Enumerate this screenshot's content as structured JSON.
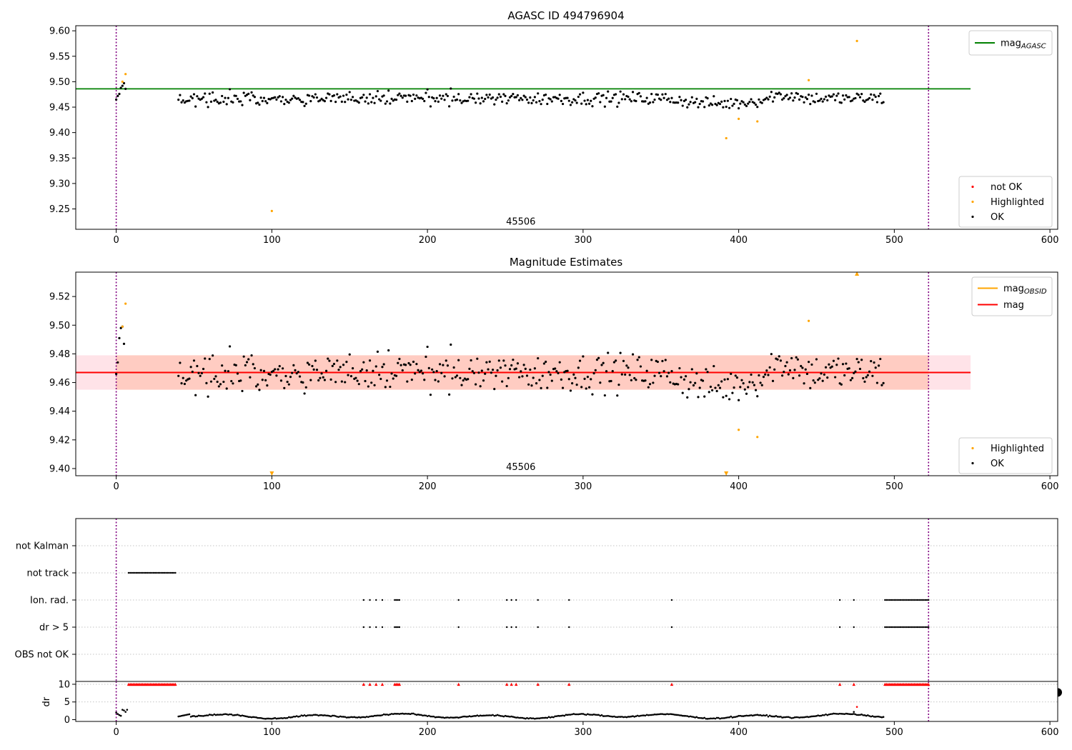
{
  "figure": {
    "panel1_title": "AGASC ID 494796904",
    "panel2_title": "Magnitude Estimates",
    "obsid_label": "45506"
  },
  "chart_data": [
    {
      "type": "scatter",
      "title": "AGASC ID 494796904",
      "xlabel": "",
      "ylabel": "",
      "xlim": [
        -26,
        605
      ],
      "ylim": [
        9.21,
        9.61
      ],
      "xticks": [
        0,
        100,
        200,
        300,
        400,
        500,
        600
      ],
      "yticks": [
        9.25,
        9.3,
        9.35,
        9.4,
        9.45,
        9.5,
        9.55,
        9.6
      ],
      "ytick_labels": [
        "9.25",
        "9.30",
        "9.35",
        "9.40",
        "9.45",
        "9.50",
        "9.55",
        "9.60"
      ],
      "vlines": [
        0,
        522
      ],
      "vline_color": "#800080",
      "hline": {
        "y": 9.486,
        "x_range": [
          -26,
          549
        ],
        "color": "#008000",
        "label": "mag",
        "label_sub": "AGASC"
      },
      "annotation": {
        "text": "45506",
        "x": 260,
        "y": 9.225
      },
      "legend_top_right": [
        {
          "label": "mag",
          "sub": "AGASC",
          "color": "#008000",
          "marker": "line"
        }
      ],
      "legend_bottom_right": [
        {
          "label": "not OK",
          "color": "#ff0000",
          "marker": "dot"
        },
        {
          "label": "Highlighted",
          "color": "#ffa500",
          "marker": "dot"
        },
        {
          "label": "OK",
          "color": "#000000",
          "marker": "dot"
        }
      ],
      "series": [
        {
          "name": "OK",
          "color": "#000000",
          "generated_range": [
            40,
            493
          ],
          "center": 9.467,
          "spread": 0.013,
          "points": [
            [
              0,
              9.465
            ],
            [
              1,
              9.472
            ],
            [
              2,
              9.476
            ],
            [
              3,
              9.488
            ],
            [
              4,
              9.492
            ],
            [
              5,
              9.497
            ],
            [
              6,
              9.486
            ]
          ]
        },
        {
          "name": "Highlighted",
          "color": "#ffa500",
          "points": [
            [
              4,
              9.5
            ],
            [
              6,
              9.515
            ],
            [
              100,
              9.246
            ],
            [
              392,
              9.389
            ],
            [
              400,
              9.427
            ],
            [
              412,
              9.422
            ],
            [
              445,
              9.503
            ],
            [
              476,
              9.58
            ]
          ]
        }
      ]
    },
    {
      "type": "scatter",
      "title": "Magnitude Estimates",
      "xlabel": "",
      "ylabel": "",
      "xlim": [
        -26,
        605
      ],
      "ylim": [
        9.395,
        9.537
      ],
      "xticks": [
        0,
        100,
        200,
        300,
        400,
        500,
        600
      ],
      "yticks": [
        9.4,
        9.42,
        9.44,
        9.46,
        9.48,
        9.5,
        9.52
      ],
      "ytick_labels": [
        "9.40",
        "9.42",
        "9.44",
        "9.46",
        "9.48",
        "9.50",
        "9.52"
      ],
      "vlines": [
        0,
        522
      ],
      "vline_color": "#800080",
      "mag_line": {
        "y": 9.467,
        "x_range": [
          -26,
          549
        ],
        "color": "#ff0000",
        "label": "mag"
      },
      "mag_obsid_line": {
        "y": 9.467,
        "x_range": [
          0,
          522
        ],
        "color": "#ffa500",
        "label": "mag",
        "label_sub": "OBSID"
      },
      "band_pink": {
        "y0": 9.455,
        "y1": 9.479,
        "x_range": [
          -26,
          549
        ],
        "color": "#ffc0cb"
      },
      "band_orange": {
        "y0": 9.455,
        "y1": 9.479,
        "x_range": [
          0,
          522
        ],
        "color": "#ffa07a"
      },
      "annotation": {
        "text": "45506",
        "x": 260,
        "y": 9.401
      },
      "legend_top_right": [
        {
          "label": "mag",
          "sub": "OBSID",
          "color": "#ffa500",
          "marker": "line"
        },
        {
          "label": "mag",
          "sub": "",
          "color": "#ff0000",
          "marker": "line"
        }
      ],
      "legend_bottom_right": [
        {
          "label": "Highlighted",
          "color": "#ffa500",
          "marker": "dot"
        },
        {
          "label": "OK",
          "color": "#000000",
          "marker": "dot"
        }
      ],
      "series": [
        {
          "name": "OK",
          "color": "#000000",
          "generated_range": [
            40,
            493
          ],
          "center": 9.467,
          "spread": 0.013,
          "points": [
            [
              0,
              9.466
            ],
            [
              1,
              9.474
            ],
            [
              2,
              9.491
            ],
            [
              3,
              9.498
            ],
            [
              4,
              9.499
            ],
            [
              5,
              9.487
            ]
          ]
        },
        {
          "name": "Highlighted",
          "color": "#ffa500",
          "points": [
            [
              4,
              9.499
            ],
            [
              6,
              9.515
            ],
            [
              400,
              9.427
            ],
            [
              412,
              9.422
            ],
            [
              445,
              9.503
            ]
          ]
        },
        {
          "name": "Highlighted out of range",
          "color": "#ffa500",
          "marker": "triangle",
          "points": [
            [
              100,
              9.396,
              "down"
            ],
            [
              392,
              9.396,
              "down"
            ],
            [
              476,
              9.537,
              "up"
            ]
          ]
        }
      ]
    },
    {
      "type": "scatter",
      "title": "",
      "xlim": [
        -26,
        605
      ],
      "categories": [
        "not Kalman",
        "not track",
        "Ion. rad.",
        "dr > 5",
        "OBS not OK"
      ],
      "vlines": [
        0,
        522
      ],
      "vline_color": "#800080",
      "flag_points": {
        "not track": [
          [
            8,
            38
          ]
        ],
        "Ion. rad.": [
          [
            159
          ],
          [
            163
          ],
          [
            167
          ],
          [
            171
          ],
          [
            179
          ],
          [
            180
          ],
          [
            181
          ],
          [
            182
          ],
          [
            220
          ],
          [
            251
          ],
          [
            254
          ],
          [
            257
          ],
          [
            271
          ],
          [
            291
          ],
          [
            357
          ],
          [
            465
          ],
          [
            474
          ],
          [
            494,
            522
          ]
        ],
        "dr > 5": [
          [
            159
          ],
          [
            163
          ],
          [
            167
          ],
          [
            171
          ],
          [
            179
          ],
          [
            180
          ],
          [
            181
          ],
          [
            182
          ],
          [
            220
          ],
          [
            251
          ],
          [
            254
          ],
          [
            257
          ],
          [
            271
          ],
          [
            291
          ],
          [
            357
          ],
          [
            465
          ],
          [
            474
          ],
          [
            494,
            522
          ]
        ]
      }
    },
    {
      "type": "scatter",
      "title": "",
      "xlabel": "",
      "ylabel": "dr",
      "xlim": [
        -26,
        605
      ],
      "ylim": [
        -0.5,
        10.8
      ],
      "xticks": [
        0,
        100,
        200,
        300,
        400,
        500,
        600
      ],
      "yticks": [
        0,
        5,
        10
      ],
      "ytick_labels": [
        "0",
        "5",
        "10"
      ],
      "vlines": [
        0,
        522
      ],
      "vline_color": "#800080",
      "series": [
        {
          "name": "dr",
          "color": "#000000",
          "generated_range": [
            40,
            493
          ],
          "points": [
            [
              0,
              2.0
            ],
            [
              1,
              1.6
            ],
            [
              2,
              1.3
            ],
            [
              3,
              1.1
            ],
            [
              4,
              2.8
            ],
            [
              5,
              2.6
            ],
            [
              6,
              2.2
            ],
            [
              7,
              2.8
            ],
            [
              474,
              2.2
            ],
            [
              476,
              3.6
            ]
          ]
        },
        {
          "name": "dr capped",
          "color": "#ff0000",
          "marker": "triangle",
          "ranges": [
            [
              8,
              38
            ],
            [
              494,
              522
            ]
          ],
          "single": [
            159,
            163,
            167,
            171,
            179,
            180,
            181,
            182,
            220,
            251,
            254,
            257,
            271,
            291,
            357,
            465,
            474
          ]
        }
      ]
    }
  ]
}
